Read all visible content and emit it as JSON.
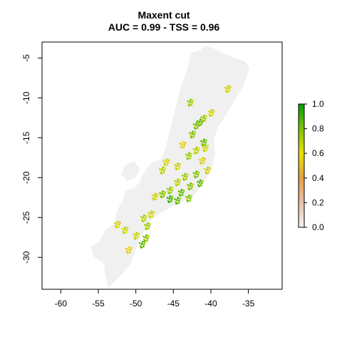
{
  "chart_data": {
    "type": "heatmap",
    "title": "Maxent cut",
    "subtitle": "AUC = 0.99 - TSS = 0.96",
    "xlabel": "",
    "ylabel": "",
    "xlim": [
      -62.5,
      -30.5
    ],
    "ylim": [
      -34,
      -3
    ],
    "x_ticks": [
      -60,
      -55,
      -50,
      -45,
      -40,
      -35
    ],
    "x_tick_labels": [
      "-60",
      "-55",
      "-50",
      "-45",
      "-40",
      "-35"
    ],
    "y_ticks": [
      -5,
      -10,
      -15,
      -20,
      -25,
      -30
    ],
    "y_tick_labels": [
      "-5",
      "-10",
      "-15",
      "-20",
      "-25",
      "-30"
    ],
    "background_value_color": "#f0f0f0",
    "legend": {
      "placement": "right",
      "min": 0.0,
      "max": 1.0,
      "ticks": [
        0.0,
        0.2,
        0.4,
        0.6,
        0.8,
        1.0
      ],
      "tick_labels": [
        "0.0",
        "0.2",
        "0.4",
        "0.6",
        "0.8",
        "1.0"
      ],
      "colors": [
        "#f2f2f2",
        "#e8c0a8",
        "#e8a040",
        "#e8e000",
        "#7cc400",
        "#00a000"
      ]
    },
    "suitable_cells": [
      {
        "x": -41.5,
        "y": -13.0,
        "value": 0.9
      },
      {
        "x": -42.0,
        "y": -13.4,
        "value": 0.85
      },
      {
        "x": -41.0,
        "y": -12.5,
        "value": 0.8
      },
      {
        "x": -42.5,
        "y": -14.5,
        "value": 0.85
      },
      {
        "x": -41.0,
        "y": -15.5,
        "value": 0.9
      },
      {
        "x": -40.8,
        "y": -16.2,
        "value": 0.7
      },
      {
        "x": -42.0,
        "y": -16.5,
        "value": 0.75
      },
      {
        "x": -43.0,
        "y": -17.2,
        "value": 0.8
      },
      {
        "x": -41.2,
        "y": -17.8,
        "value": 0.65
      },
      {
        "x": -40.5,
        "y": -19.0,
        "value": 0.7
      },
      {
        "x": -42.0,
        "y": -19.5,
        "value": 0.85
      },
      {
        "x": -43.5,
        "y": -19.8,
        "value": 0.8
      },
      {
        "x": -41.5,
        "y": -20.6,
        "value": 0.9
      },
      {
        "x": -42.8,
        "y": -21.0,
        "value": 0.85
      },
      {
        "x": -44.5,
        "y": -20.5,
        "value": 0.75
      },
      {
        "x": -44.0,
        "y": -21.8,
        "value": 0.9
      },
      {
        "x": -45.5,
        "y": -21.5,
        "value": 0.8
      },
      {
        "x": -46.5,
        "y": -22.0,
        "value": 0.85
      },
      {
        "x": -45.5,
        "y": -22.6,
        "value": 0.95
      },
      {
        "x": -44.5,
        "y": -22.8,
        "value": 0.9
      },
      {
        "x": -43.0,
        "y": -22.5,
        "value": 0.85
      },
      {
        "x": -47.5,
        "y": -22.3,
        "value": 0.7
      },
      {
        "x": -46.5,
        "y": -19.0,
        "value": 0.75
      },
      {
        "x": -46.0,
        "y": -18.0,
        "value": 0.65
      },
      {
        "x": -42.8,
        "y": -10.5,
        "value": 0.8
      },
      {
        "x": -40.0,
        "y": -11.8,
        "value": 0.7
      },
      {
        "x": -48.0,
        "y": -24.5,
        "value": 0.7
      },
      {
        "x": -49.0,
        "y": -25.0,
        "value": 0.75
      },
      {
        "x": -48.5,
        "y": -26.0,
        "value": 0.8
      },
      {
        "x": -48.7,
        "y": -27.5,
        "value": 0.85
      },
      {
        "x": -49.2,
        "y": -28.3,
        "value": 0.9
      },
      {
        "x": -50.0,
        "y": -27.2,
        "value": 0.7
      },
      {
        "x": -51.5,
        "y": -26.5,
        "value": 0.7
      },
      {
        "x": -52.5,
        "y": -25.8,
        "value": 0.65
      },
      {
        "x": -51.0,
        "y": -29.0,
        "value": 0.6
      },
      {
        "x": -37.8,
        "y": -8.8,
        "value": 0.7
      },
      {
        "x": -44.5,
        "y": -18.5,
        "value": 0.7
      },
      {
        "x": -43.8,
        "y": -15.8,
        "value": 0.6
      }
    ]
  }
}
